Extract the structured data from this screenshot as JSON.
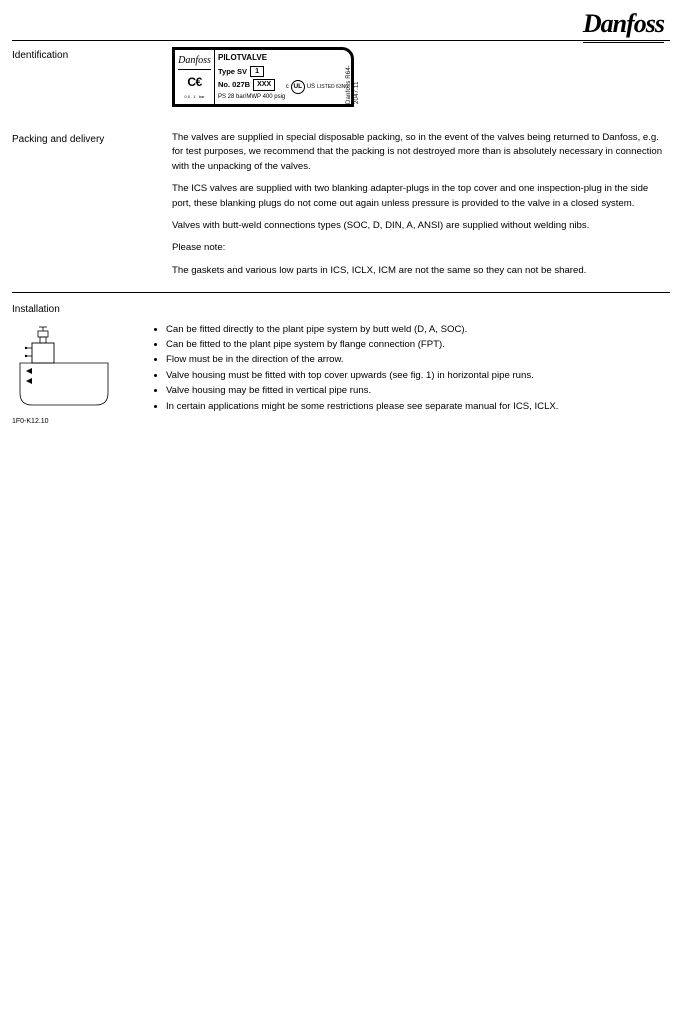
{
  "logo_text": "Danfoss",
  "sections": {
    "identification": {
      "label": "Identification",
      "plate": {
        "small_logo": "Danfoss",
        "ce": "C€",
        "bottom_tiny": "0.0 . 1 . bar",
        "side_note": "Danfoss R64-2047.11",
        "line1": "PILOTVALVE",
        "line2_label": "Type SV",
        "line2_box": "1",
        "line3_label": "No. 027B",
        "line3_box": "XXX",
        "line4": "PS 28 bar/MWP 400 psig",
        "ul": "UL",
        "ul_c": "c",
        "ul_us": "US",
        "ul_listed": "LISTED 63N0"
      }
    },
    "delivery": {
      "label": "Packing and delivery",
      "p1": "The valves are supplied in special disposable packing, so in the event of the valves being returned to Danfoss, e.g. for test purposes, we recommend that the packing is not destroyed more than is absolutely necessary in connection with the unpacking of the valves.",
      "p2": "The ICS valves are supplied with two blanking adapter-plugs in the top cover and one inspection-plug in the side port, these blanking plugs do not come out again unless pressure is provided to the valve in a closed system.",
      "p3": "Valves with butt-weld connections types (SOC, D, DIN, A, ANSI) are supplied without welding nibs.",
      "p4": "Please note:",
      "p5": "The gaskets and various low parts in ICS, ICLX, ICM are not the same so they can not be shared."
    },
    "installation": {
      "label": "Installation",
      "figure_id": "1F0-K12.10",
      "bullets": [
        "Can be fitted directly to the plant pipe system by butt weld (D, A, SOC).",
        "Can be fitted to the plant pipe system by flange connection (FPT).",
        "Flow must be in the direction of the arrow.",
        "Valve housing must be fitted with top cover upwards (see fig. 1) in horizontal pipe runs.",
        "Valve housing may be fitted in vertical pipe runs.",
        "In certain applications might be some restrictions please see separate manual for ICS, ICLX."
      ]
    }
  },
  "colors": {
    "line": "#000000",
    "bg": "#ffffff"
  }
}
